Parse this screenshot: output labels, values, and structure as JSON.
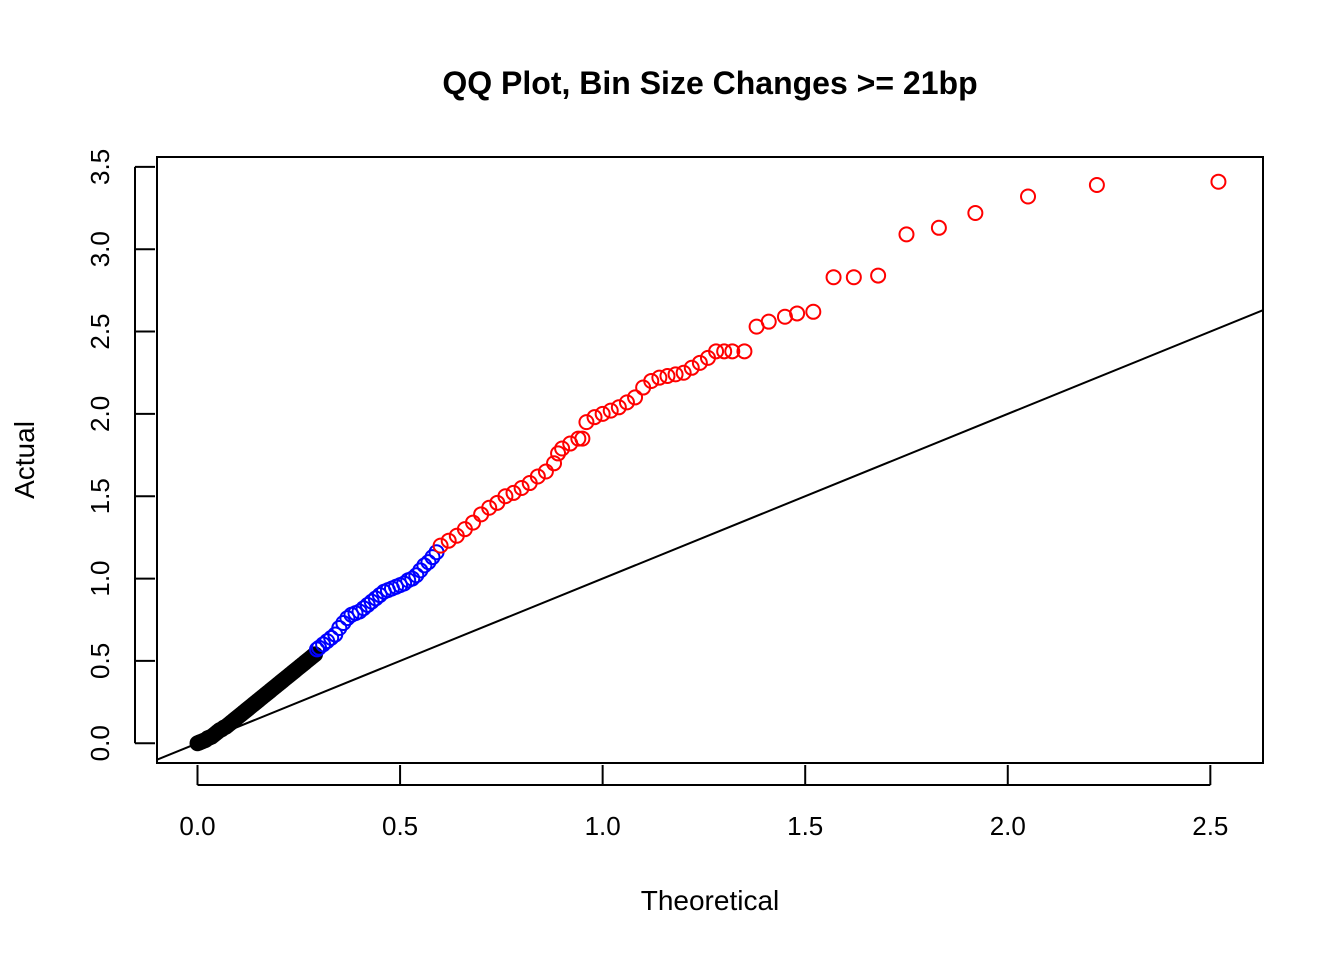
{
  "chart_data": {
    "type": "scatter",
    "title": "QQ Plot, Bin Size Changes >= 21bp",
    "xlabel": "Theoretical",
    "ylabel": "Actual",
    "xlim": [
      -0.1,
      2.63
    ],
    "ylim": [
      -0.12,
      3.56
    ],
    "x_ticks": [
      "0.0",
      "0.5",
      "1.0",
      "1.5",
      "2.0",
      "2.5"
    ],
    "y_ticks": [
      "0.0",
      "0.5",
      "1.0",
      "1.5",
      "2.0",
      "2.5",
      "3.0",
      "3.5"
    ],
    "grid": false,
    "legend": "none",
    "reference_line": {
      "intercept": 0,
      "slope": 1,
      "color": "#000000"
    },
    "series": [
      {
        "color": "#000000",
        "marker": "filled-circle",
        "points": [
          [
            0.0,
            0.0
          ],
          [
            0.005,
            0.005
          ],
          [
            0.01,
            0.01
          ],
          [
            0.015,
            0.015
          ],
          [
            0.02,
            0.02
          ],
          [
            0.025,
            0.03
          ],
          [
            0.03,
            0.035
          ],
          [
            0.035,
            0.04
          ],
          [
            0.04,
            0.05
          ],
          [
            0.045,
            0.06
          ],
          [
            0.05,
            0.07
          ],
          [
            0.055,
            0.08
          ],
          [
            0.06,
            0.085
          ],
          [
            0.065,
            0.095
          ],
          [
            0.07,
            0.1
          ],
          [
            0.075,
            0.11
          ],
          [
            0.08,
            0.12
          ],
          [
            0.085,
            0.13
          ],
          [
            0.09,
            0.14
          ],
          [
            0.095,
            0.15
          ],
          [
            0.1,
            0.16
          ],
          [
            0.105,
            0.17
          ],
          [
            0.11,
            0.18
          ],
          [
            0.115,
            0.19
          ],
          [
            0.12,
            0.2
          ],
          [
            0.125,
            0.21
          ],
          [
            0.13,
            0.22
          ],
          [
            0.135,
            0.23
          ],
          [
            0.14,
            0.24
          ],
          [
            0.145,
            0.25
          ],
          [
            0.15,
            0.26
          ],
          [
            0.155,
            0.27
          ],
          [
            0.16,
            0.28
          ],
          [
            0.165,
            0.29
          ],
          [
            0.17,
            0.3
          ],
          [
            0.175,
            0.31
          ],
          [
            0.18,
            0.32
          ],
          [
            0.185,
            0.33
          ],
          [
            0.19,
            0.34
          ],
          [
            0.195,
            0.35
          ],
          [
            0.2,
            0.36
          ],
          [
            0.205,
            0.37
          ],
          [
            0.21,
            0.38
          ],
          [
            0.215,
            0.39
          ],
          [
            0.22,
            0.4
          ],
          [
            0.225,
            0.41
          ],
          [
            0.23,
            0.42
          ],
          [
            0.235,
            0.43
          ],
          [
            0.24,
            0.44
          ],
          [
            0.245,
            0.45
          ],
          [
            0.25,
            0.46
          ],
          [
            0.255,
            0.47
          ],
          [
            0.26,
            0.48
          ],
          [
            0.265,
            0.49
          ],
          [
            0.27,
            0.5
          ],
          [
            0.275,
            0.51
          ],
          [
            0.28,
            0.52
          ],
          [
            0.285,
            0.53
          ],
          [
            0.29,
            0.54
          ]
        ]
      },
      {
        "color": "#0000ff",
        "marker": "circle",
        "points": [
          [
            0.295,
            0.57
          ],
          [
            0.3,
            0.58
          ],
          [
            0.31,
            0.6
          ],
          [
            0.32,
            0.62
          ],
          [
            0.33,
            0.64
          ],
          [
            0.34,
            0.66
          ],
          [
            0.35,
            0.7
          ],
          [
            0.36,
            0.73
          ],
          [
            0.37,
            0.76
          ],
          [
            0.38,
            0.78
          ],
          [
            0.39,
            0.79
          ],
          [
            0.4,
            0.8
          ],
          [
            0.41,
            0.82
          ],
          [
            0.42,
            0.84
          ],
          [
            0.43,
            0.86
          ],
          [
            0.44,
            0.88
          ],
          [
            0.45,
            0.9
          ],
          [
            0.46,
            0.92
          ],
          [
            0.47,
            0.93
          ],
          [
            0.48,
            0.94
          ],
          [
            0.49,
            0.95
          ],
          [
            0.5,
            0.96
          ],
          [
            0.51,
            0.97
          ],
          [
            0.52,
            0.99
          ],
          [
            0.53,
            1.0
          ],
          [
            0.54,
            1.02
          ],
          [
            0.55,
            1.05
          ],
          [
            0.56,
            1.08
          ],
          [
            0.57,
            1.1
          ],
          [
            0.58,
            1.13
          ],
          [
            0.59,
            1.16
          ]
        ]
      },
      {
        "color": "#ff0000",
        "marker": "circle",
        "points": [
          [
            0.6,
            1.2
          ],
          [
            0.62,
            1.23
          ],
          [
            0.64,
            1.26
          ],
          [
            0.66,
            1.3
          ],
          [
            0.68,
            1.34
          ],
          [
            0.7,
            1.39
          ],
          [
            0.72,
            1.43
          ],
          [
            0.74,
            1.46
          ],
          [
            0.76,
            1.5
          ],
          [
            0.78,
            1.52
          ],
          [
            0.8,
            1.55
          ],
          [
            0.82,
            1.58
          ],
          [
            0.84,
            1.62
          ],
          [
            0.86,
            1.65
          ],
          [
            0.88,
            1.7
          ],
          [
            0.89,
            1.76
          ],
          [
            0.9,
            1.79
          ],
          [
            0.92,
            1.82
          ],
          [
            0.94,
            1.85
          ],
          [
            0.95,
            1.85
          ],
          [
            0.96,
            1.95
          ],
          [
            0.98,
            1.98
          ],
          [
            1.0,
            2.0
          ],
          [
            1.02,
            2.02
          ],
          [
            1.04,
            2.04
          ],
          [
            1.06,
            2.07
          ],
          [
            1.08,
            2.1
          ],
          [
            1.1,
            2.16
          ],
          [
            1.12,
            2.2
          ],
          [
            1.14,
            2.22
          ],
          [
            1.16,
            2.23
          ],
          [
            1.18,
            2.24
          ],
          [
            1.2,
            2.25
          ],
          [
            1.22,
            2.28
          ],
          [
            1.24,
            2.31
          ],
          [
            1.26,
            2.34
          ],
          [
            1.28,
            2.38
          ],
          [
            1.3,
            2.38
          ],
          [
            1.32,
            2.38
          ],
          [
            1.35,
            2.38
          ],
          [
            1.38,
            2.53
          ],
          [
            1.41,
            2.56
          ],
          [
            1.45,
            2.59
          ],
          [
            1.48,
            2.61
          ],
          [
            1.52,
            2.62
          ],
          [
            1.57,
            2.83
          ],
          [
            1.62,
            2.83
          ],
          [
            1.68,
            2.84
          ],
          [
            1.75,
            3.09
          ],
          [
            1.83,
            3.13
          ],
          [
            1.92,
            3.22
          ],
          [
            2.05,
            3.32
          ],
          [
            2.22,
            3.39
          ],
          [
            2.52,
            3.41
          ]
        ]
      }
    ]
  }
}
